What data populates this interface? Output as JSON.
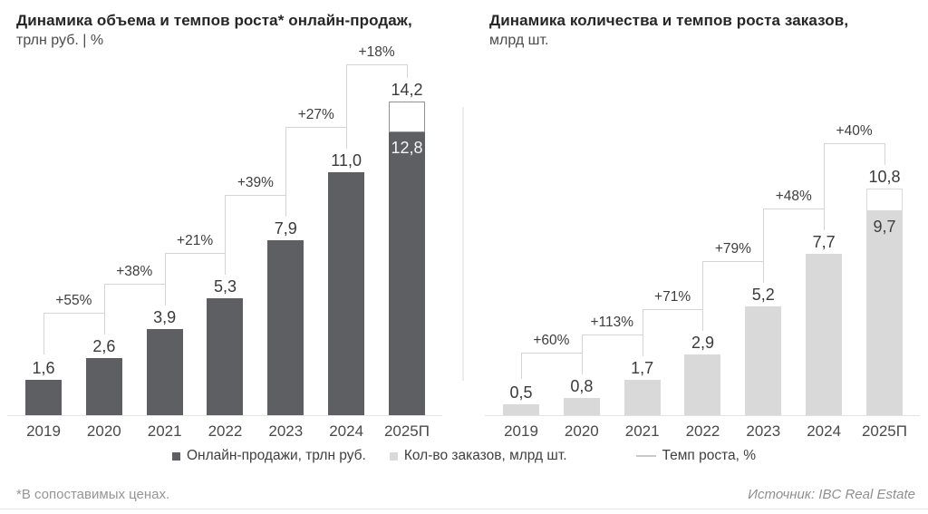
{
  "page": {
    "footnote": "*В сопоставимых ценах.",
    "source": "Источник: IBC Real Estate"
  },
  "legend": {
    "items": [
      {
        "name": "online-sales",
        "marker": "square",
        "color": "#5d5f63",
        "label": "Онлайн-продажи, трлн руб."
      },
      {
        "name": "orders-count",
        "marker": "square",
        "color": "#d9d9d9",
        "label": "Кол-во заказов, млрд шт."
      },
      {
        "name": "growth-rate",
        "marker": "line",
        "color": "#c9c9c9",
        "label": "Темп роста, %"
      }
    ]
  },
  "colors": {
    "dark_bar": "#5d5f63",
    "light_bar": "#d9d9d9",
    "bracket_line": "#d4d4d4",
    "baseline": "#e4e4e4"
  },
  "chart_data": [
    {
      "type": "bar",
      "title": "Динамика объема и темпов роста* онлайн-продаж,",
      "subtitle": "трлн руб. | %",
      "categories": [
        "2019",
        "2020",
        "2021",
        "2022",
        "2023",
        "2024",
        "2025П"
      ],
      "values": [
        1.6,
        2.6,
        3.9,
        5.3,
        7.9,
        11.0,
        14.2
      ],
      "value_labels": [
        "1,6",
        "2,6",
        "3,9",
        "5,3",
        "7,9",
        "11,0",
        "14,2"
      ],
      "growth_labels": [
        "+55%",
        "+38%",
        "+21%",
        "+39%",
        "+27%",
        "+18%"
      ],
      "forecast": {
        "index": 6,
        "solid_value": 12.8,
        "solid_label": "12,8",
        "total_label": "14,2"
      },
      "bar_color": "#5d5f63",
      "cap_border_color": "#8f9195",
      "solid_label_color": "#f5f5f5",
      "xlabel": "",
      "ylabel": "трлн руб.",
      "ylim": [
        0,
        14.2
      ],
      "grid": false,
      "legend_position": "bottom"
    },
    {
      "type": "bar",
      "title": "Динамика количества и темпов роста заказов,",
      "subtitle": "млрд шт.",
      "categories": [
        "2019",
        "2020",
        "2021",
        "2022",
        "2023",
        "2024",
        "2025П"
      ],
      "values": [
        0.5,
        0.8,
        1.7,
        2.9,
        5.2,
        7.7,
        10.8
      ],
      "value_labels": [
        "0,5",
        "0,8",
        "1,7",
        "2,9",
        "5,2",
        "7,7",
        "10,8"
      ],
      "growth_labels": [
        "+60%",
        "+113%",
        "+71%",
        "+79%",
        "+48%",
        "+40%"
      ],
      "forecast": {
        "index": 6,
        "solid_value": 9.7,
        "solid_label": "9,7",
        "total_label": "10,8"
      },
      "bar_color": "#d9d9d9",
      "cap_border_color": "#dadada",
      "solid_label_color": "#3f3f3f",
      "xlabel": "",
      "ylabel": "млрд шт.",
      "ylim": [
        0,
        10.8
      ],
      "grid": false,
      "legend_position": "bottom"
    }
  ]
}
